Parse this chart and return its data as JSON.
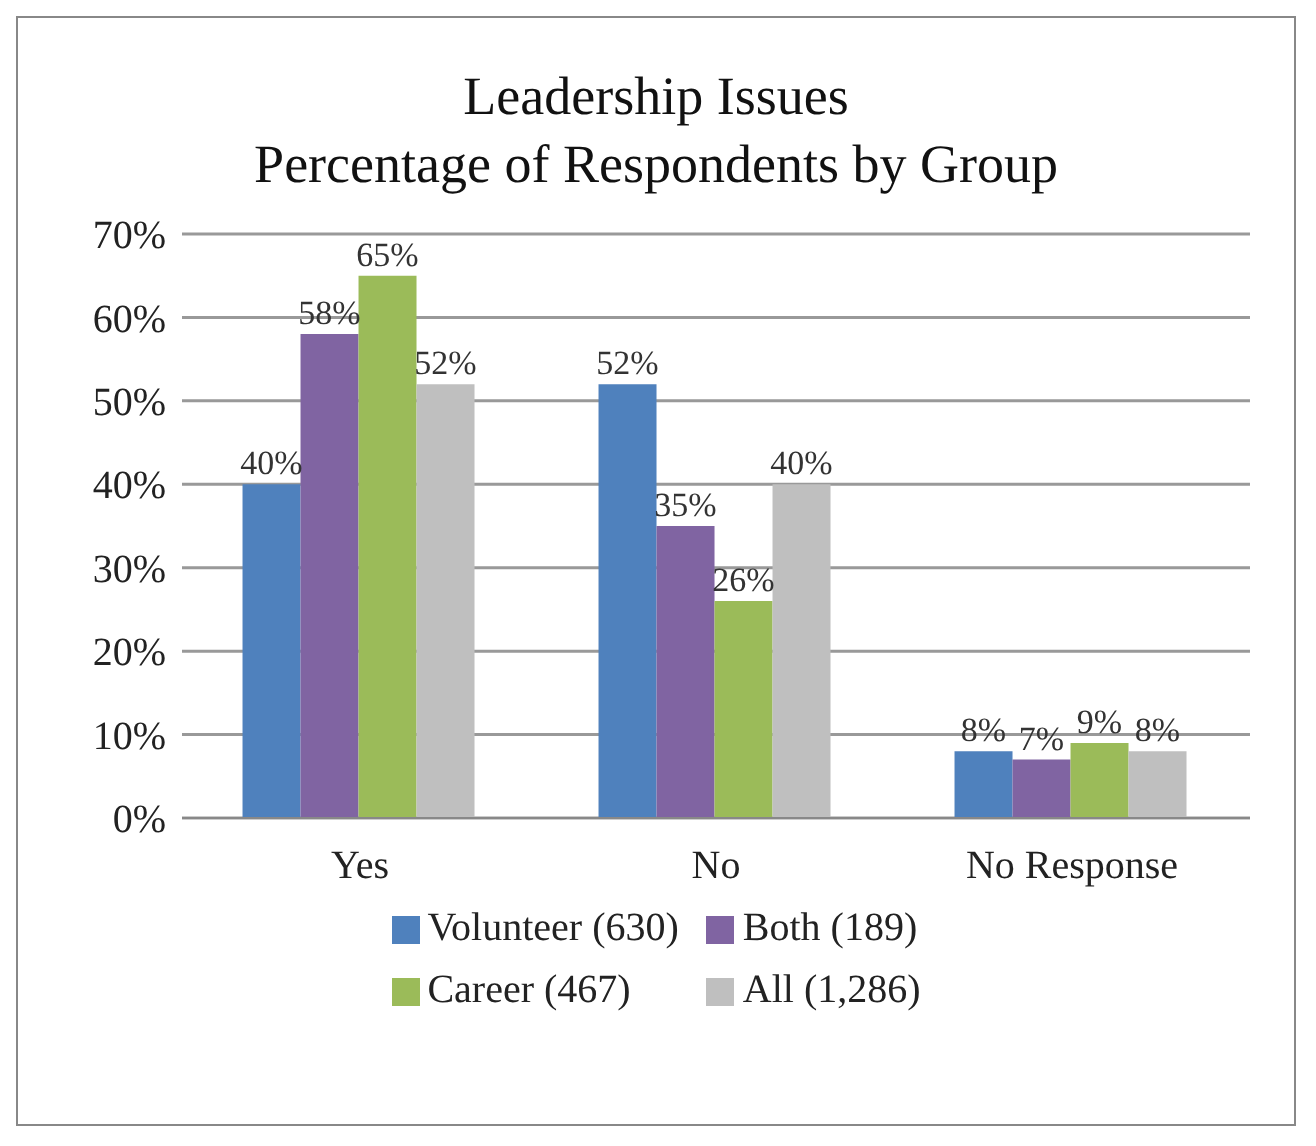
{
  "chart_data": {
    "type": "bar",
    "title": "Leadership Issues",
    "subtitle": "Percentage of Respondents by Group",
    "categories": [
      "Yes",
      "No",
      "No Response"
    ],
    "series": [
      {
        "name": "Volunteer (630)",
        "color": "#4f81bd",
        "values": [
          40,
          52,
          8
        ],
        "value_labels": [
          "40%",
          "52%",
          "8%"
        ]
      },
      {
        "name": "Both (189)",
        "color": "#8064a2",
        "values": [
          58,
          35,
          7
        ],
        "value_labels": [
          "58%",
          "35%",
          "7%"
        ]
      },
      {
        "name": "Career (467)",
        "color": "#9bbb59",
        "values": [
          65,
          26,
          9
        ],
        "value_labels": [
          "65%",
          "26%",
          "9%"
        ]
      },
      {
        "name": "All (1,286)",
        "color": "#bfbfbf",
        "values": [
          52,
          40,
          8
        ],
        "value_labels": [
          "52%",
          "40%",
          "8%"
        ]
      }
    ],
    "ylim": [
      0,
      70
    ],
    "yticks": [
      {
        "value": 0,
        "label": "0%"
      },
      {
        "value": 10,
        "label": "10%"
      },
      {
        "value": 20,
        "label": "20%"
      },
      {
        "value": 30,
        "label": "30%"
      },
      {
        "value": 40,
        "label": "40%"
      },
      {
        "value": 50,
        "label": "50%"
      },
      {
        "value": 60,
        "label": "60%"
      },
      {
        "value": 70,
        "label": "70%"
      }
    ],
    "grid": "y",
    "legend": "bottom"
  }
}
